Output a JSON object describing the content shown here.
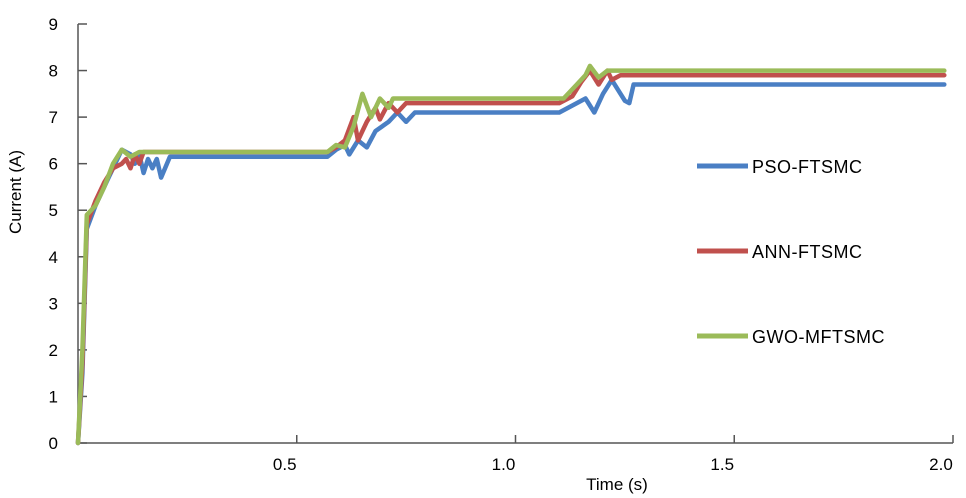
{
  "chart_data": {
    "type": "line",
    "title": "",
    "xlabel": "Time (s)",
    "ylabel": "Current (A)",
    "xlim": [
      0,
      2.0
    ],
    "ylim": [
      0,
      9
    ],
    "x_ticks": [
      "0.5",
      "1.0",
      "1.5",
      "2.0"
    ],
    "x_tick_values": [
      0.5,
      1.0,
      1.5,
      2.0
    ],
    "y_ticks": [
      "0",
      "1",
      "2",
      "3",
      "4",
      "5",
      "6",
      "7",
      "8",
      "9"
    ],
    "y_tick_values": [
      0,
      1,
      2,
      3,
      4,
      5,
      6,
      7,
      8,
      9
    ],
    "grid": false,
    "legend_position": "right",
    "series": [
      {
        "name": "PSO-FTSMC",
        "color": "#4a7fc4",
        "points": [
          [
            0,
            0
          ],
          [
            0.01,
            1.5
          ],
          [
            0.02,
            4.6
          ],
          [
            0.04,
            5.1
          ],
          [
            0.07,
            5.7
          ],
          [
            0.09,
            6.1
          ],
          [
            0.1,
            6.3
          ],
          [
            0.12,
            6.2
          ],
          [
            0.13,
            6.0
          ],
          [
            0.14,
            6.2
          ],
          [
            0.15,
            5.8
          ],
          [
            0.16,
            6.1
          ],
          [
            0.17,
            5.9
          ],
          [
            0.18,
            6.1
          ],
          [
            0.19,
            5.7
          ],
          [
            0.21,
            6.15
          ],
          [
            0.57,
            6.15
          ],
          [
            0.59,
            6.3
          ],
          [
            0.61,
            6.4
          ],
          [
            0.62,
            6.2
          ],
          [
            0.64,
            6.5
          ],
          [
            0.66,
            6.35
          ],
          [
            0.68,
            6.7
          ],
          [
            0.71,
            6.9
          ],
          [
            0.73,
            7.1
          ],
          [
            0.75,
            6.9
          ],
          [
            0.77,
            7.1
          ],
          [
            1.1,
            7.1
          ],
          [
            1.13,
            7.25
          ],
          [
            1.16,
            7.4
          ],
          [
            1.18,
            7.1
          ],
          [
            1.2,
            7.5
          ],
          [
            1.22,
            7.8
          ],
          [
            1.25,
            7.35
          ],
          [
            1.26,
            7.3
          ],
          [
            1.27,
            7.7
          ],
          [
            1.98,
            7.7
          ]
        ]
      },
      {
        "name": "ANN-FTSMC",
        "color": "#c0504d",
        "points": [
          [
            0,
            0
          ],
          [
            0.01,
            1.7
          ],
          [
            0.02,
            4.7
          ],
          [
            0.04,
            5.2
          ],
          [
            0.06,
            5.6
          ],
          [
            0.08,
            5.9
          ],
          [
            0.1,
            6.0
          ],
          [
            0.11,
            6.1
          ],
          [
            0.12,
            5.9
          ],
          [
            0.13,
            6.2
          ],
          [
            0.14,
            6.0
          ],
          [
            0.15,
            6.25
          ],
          [
            0.57,
            6.25
          ],
          [
            0.59,
            6.35
          ],
          [
            0.61,
            6.5
          ],
          [
            0.63,
            7.0
          ],
          [
            0.64,
            6.5
          ],
          [
            0.66,
            6.9
          ],
          [
            0.68,
            7.2
          ],
          [
            0.69,
            6.95
          ],
          [
            0.71,
            7.3
          ],
          [
            0.73,
            7.1
          ],
          [
            0.75,
            7.3
          ],
          [
            1.1,
            7.3
          ],
          [
            1.13,
            7.45
          ],
          [
            1.15,
            7.75
          ],
          [
            1.17,
            8.0
          ],
          [
            1.19,
            7.7
          ],
          [
            1.21,
            8.0
          ],
          [
            1.22,
            7.8
          ],
          [
            1.24,
            7.9
          ],
          [
            1.98,
            7.9
          ]
        ]
      },
      {
        "name": "GWO-MFTSMC",
        "color": "#9bbb59",
        "points": [
          [
            0,
            0
          ],
          [
            0.01,
            2.0
          ],
          [
            0.02,
            4.9
          ],
          [
            0.04,
            5.1
          ],
          [
            0.06,
            5.5
          ],
          [
            0.08,
            6.0
          ],
          [
            0.1,
            6.3
          ],
          [
            0.12,
            6.15
          ],
          [
            0.14,
            6.25
          ],
          [
            0.57,
            6.25
          ],
          [
            0.59,
            6.4
          ],
          [
            0.61,
            6.35
          ],
          [
            0.63,
            6.8
          ],
          [
            0.65,
            7.5
          ],
          [
            0.67,
            7.0
          ],
          [
            0.69,
            7.4
          ],
          [
            0.71,
            7.2
          ],
          [
            0.72,
            7.4
          ],
          [
            1.11,
            7.4
          ],
          [
            1.14,
            7.7
          ],
          [
            1.16,
            7.9
          ],
          [
            1.17,
            8.1
          ],
          [
            1.19,
            7.85
          ],
          [
            1.21,
            8.0
          ],
          [
            1.98,
            8.0
          ]
        ]
      }
    ]
  }
}
